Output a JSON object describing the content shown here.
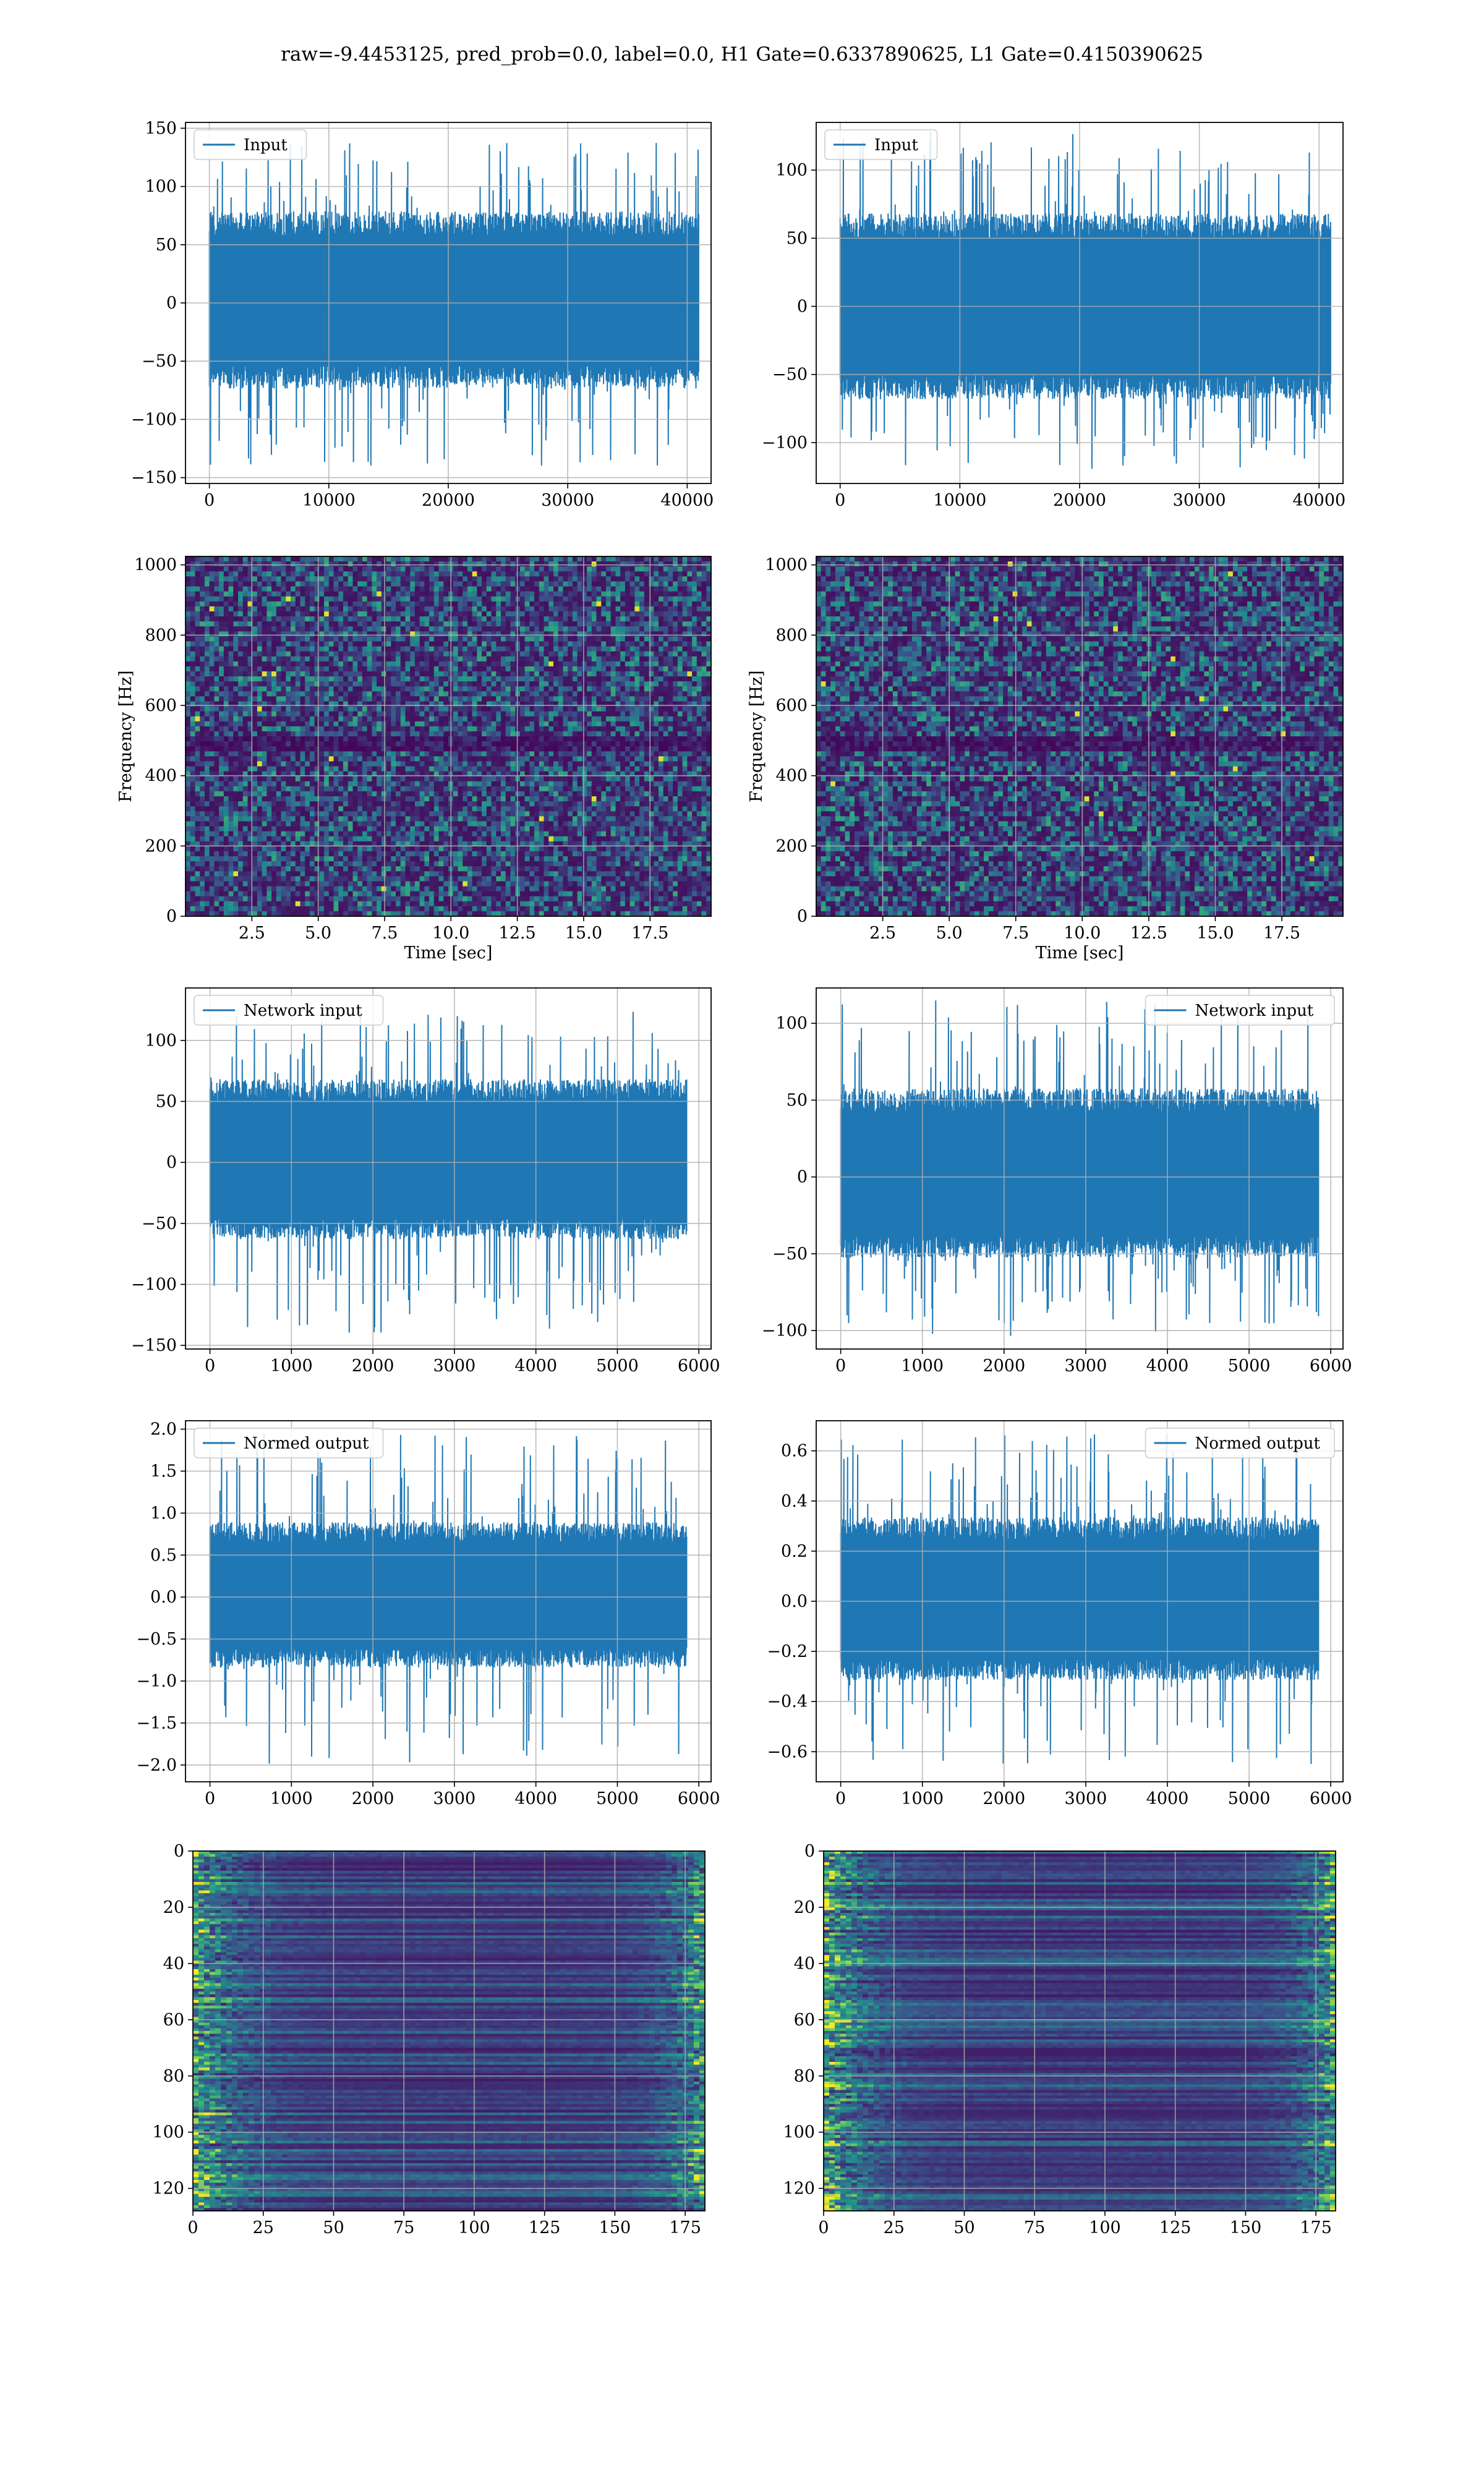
{
  "figure": {
    "title": "raw=-9.4453125, pred_prob=0.0, label=0.0, H1 Gate=0.6337890625, L1 Gate=0.4150390625",
    "colors": {
      "line": "#1f77b4",
      "grid": "#b0b0b0",
      "viridis_dark": "#440154",
      "viridis_mid": "#3b528b",
      "viridis_teal": "#21918c",
      "viridis_green": "#5ec962",
      "viridis_yellow": "#fde725"
    }
  },
  "chart_data": [
    {
      "id": "input-h1",
      "type": "line",
      "title": "",
      "xlabel": "",
      "ylabel": "",
      "xlim": [
        -2000,
        42000
      ],
      "ylim": [
        -155,
        155
      ],
      "xticks": [
        0,
        10000,
        20000,
        30000,
        40000
      ],
      "xtick_labels": [
        "0",
        "10000",
        "20000",
        "30000",
        "40000"
      ],
      "yticks": [
        -150,
        -100,
        -50,
        0,
        50,
        100,
        150
      ],
      "ytick_labels": [
        "−150",
        "−100",
        "−50",
        "0",
        "50",
        "100",
        "150"
      ],
      "grid": true,
      "legend": "top-left",
      "series": [
        {
          "name": "Input",
          "x_range": [
            0,
            40960
          ],
          "band": [
            -70,
            75
          ],
          "peak_max": 140,
          "peak_min": -140
        }
      ]
    },
    {
      "id": "input-l1",
      "type": "line",
      "title": "",
      "xlabel": "",
      "ylabel": "",
      "xlim": [
        -2000,
        42000
      ],
      "ylim": [
        -130,
        135
      ],
      "xticks": [
        0,
        10000,
        20000,
        30000,
        40000
      ],
      "xtick_labels": [
        "0",
        "10000",
        "20000",
        "30000",
        "40000"
      ],
      "yticks": [
        -100,
        -50,
        0,
        50,
        100
      ],
      "ytick_labels": [
        "−100",
        "−50",
        "0",
        "50",
        "100"
      ],
      "grid": true,
      "legend": "top-left",
      "series": [
        {
          "name": "Input",
          "x_range": [
            0,
            40960
          ],
          "band": [
            -65,
            65
          ],
          "peak_max": 130,
          "peak_min": -120
        }
      ]
    },
    {
      "id": "spectrogram-h1",
      "type": "heatmap",
      "title": "",
      "xlabel": "Time [sec]",
      "ylabel": "Frequency [Hz]",
      "xlim": [
        0,
        19.8
      ],
      "ylim": [
        0,
        1024
      ],
      "xticks": [
        2.5,
        5.0,
        7.5,
        10.0,
        12.5,
        15.0,
        17.5
      ],
      "xtick_labels": [
        "2.5",
        "5.0",
        "7.5",
        "10.0",
        "12.5",
        "15.0",
        "17.5"
      ],
      "yticks": [
        0,
        200,
        400,
        600,
        800,
        1000
      ],
      "ytick_labels": [
        "0",
        "200",
        "400",
        "600",
        "800",
        "1000"
      ],
      "grid": true,
      "colormap": "viridis"
    },
    {
      "id": "spectrogram-l1",
      "type": "heatmap",
      "title": "",
      "xlabel": "Time [sec]",
      "ylabel": "Frequency [Hz]",
      "xlim": [
        0,
        19.8
      ],
      "ylim": [
        0,
        1024
      ],
      "xticks": [
        2.5,
        5.0,
        7.5,
        10.0,
        12.5,
        15.0,
        17.5
      ],
      "xtick_labels": [
        "2.5",
        "5.0",
        "7.5",
        "10.0",
        "12.5",
        "15.0",
        "17.5"
      ],
      "yticks": [
        0,
        200,
        400,
        600,
        800,
        1000
      ],
      "ytick_labels": [
        "0",
        "200",
        "400",
        "600",
        "800",
        "1000"
      ],
      "grid": true,
      "colormap": "viridis"
    },
    {
      "id": "network-input-h1",
      "type": "line",
      "title": "",
      "xlabel": "",
      "ylabel": "",
      "xlim": [
        -300,
        6150
      ],
      "ylim": [
        -153,
        143
      ],
      "xticks": [
        0,
        1000,
        2000,
        3000,
        4000,
        5000,
        6000
      ],
      "xtick_labels": [
        "0",
        "1000",
        "2000",
        "3000",
        "4000",
        "5000",
        "6000"
      ],
      "yticks": [
        -150,
        -100,
        -50,
        0,
        50,
        100
      ],
      "ytick_labels": [
        "−150",
        "−100",
        "−50",
        "0",
        "50",
        "100"
      ],
      "grid": true,
      "legend": "top-left",
      "series": [
        {
          "name": "Network input",
          "x_range": [
            0,
            5850
          ],
          "band": [
            -60,
            65
          ],
          "peak_max": 125,
          "peak_min": -140
        }
      ]
    },
    {
      "id": "network-input-l1",
      "type": "line",
      "title": "",
      "xlabel": "",
      "ylabel": "",
      "xlim": [
        -300,
        6150
      ],
      "ylim": [
        -112,
        123
      ],
      "xticks": [
        0,
        1000,
        2000,
        3000,
        4000,
        5000,
        6000
      ],
      "xtick_labels": [
        "0",
        "1000",
        "2000",
        "3000",
        "4000",
        "5000",
        "6000"
      ],
      "yticks": [
        -100,
        -50,
        0,
        50,
        100
      ],
      "ytick_labels": [
        "−100",
        "−50",
        "0",
        "50",
        "100"
      ],
      "grid": true,
      "legend": "top-right",
      "series": [
        {
          "name": "Network input",
          "x_range": [
            0,
            5850
          ],
          "band": [
            -50,
            55
          ],
          "peak_max": 115,
          "peak_min": -105
        }
      ]
    },
    {
      "id": "normed-output-h1",
      "type": "line",
      "title": "",
      "xlabel": "",
      "ylabel": "",
      "xlim": [
        -300,
        6150
      ],
      "ylim": [
        -2.2,
        2.1
      ],
      "xticks": [
        0,
        1000,
        2000,
        3000,
        4000,
        5000,
        6000
      ],
      "xtick_labels": [
        "0",
        "1000",
        "2000",
        "3000",
        "4000",
        "5000",
        "6000"
      ],
      "yticks": [
        -2.0,
        -1.5,
        -1.0,
        -0.5,
        0.0,
        0.5,
        1.0,
        1.5,
        2.0
      ],
      "ytick_labels": [
        "−2.0",
        "−1.5",
        "−1.0",
        "−0.5",
        "0.0",
        "0.5",
        "1.0",
        "1.5",
        "2.0"
      ],
      "grid": true,
      "legend": "top-left",
      "series": [
        {
          "name": "Normed output",
          "x_range": [
            0,
            5850
          ],
          "band": [
            -0.8,
            0.85
          ],
          "peak_max": 1.95,
          "peak_min": -2.0
        }
      ]
    },
    {
      "id": "normed-output-l1",
      "type": "line",
      "title": "",
      "xlabel": "",
      "ylabel": "",
      "xlim": [
        -300,
        6150
      ],
      "ylim": [
        -0.72,
        0.72
      ],
      "xticks": [
        0,
        1000,
        2000,
        3000,
        4000,
        5000,
        6000
      ],
      "xtick_labels": [
        "0",
        "1000",
        "2000",
        "3000",
        "4000",
        "5000",
        "6000"
      ],
      "yticks": [
        -0.6,
        -0.4,
        -0.2,
        0.0,
        0.2,
        0.4,
        0.6
      ],
      "ytick_labels": [
        "−0.6",
        "−0.4",
        "−0.2",
        "0.0",
        "0.2",
        "0.4",
        "0.6"
      ],
      "grid": true,
      "legend": "top-right",
      "series": [
        {
          "name": "Normed output",
          "x_range": [
            0,
            5850
          ],
          "band": [
            -0.3,
            0.32
          ],
          "peak_max": 0.68,
          "peak_min": -0.65
        }
      ]
    },
    {
      "id": "feature-map-h1",
      "type": "heatmap",
      "title": "",
      "xlabel": "",
      "ylabel": "",
      "xlim": [
        0,
        182
      ],
      "ylim": [
        128,
        0
      ],
      "xticks": [
        0,
        25,
        50,
        75,
        100,
        125,
        150,
        175
      ],
      "xtick_labels": [
        "0",
        "25",
        "50",
        "75",
        "100",
        "125",
        "150",
        "175"
      ],
      "yticks": [
        0,
        20,
        40,
        60,
        80,
        100,
        120
      ],
      "ytick_labels": [
        "0",
        "20",
        "40",
        "60",
        "80",
        "100",
        "120"
      ],
      "grid": true,
      "colormap": "viridis"
    },
    {
      "id": "feature-map-l1",
      "type": "heatmap",
      "title": "",
      "xlabel": "",
      "ylabel": "",
      "xlim": [
        0,
        182
      ],
      "ylim": [
        128,
        0
      ],
      "xticks": [
        0,
        25,
        50,
        75,
        100,
        125,
        150,
        175
      ],
      "xtick_labels": [
        "0",
        "25",
        "50",
        "75",
        "100",
        "125",
        "150",
        "175"
      ],
      "yticks": [
        0,
        20,
        40,
        60,
        80,
        100,
        120
      ],
      "ytick_labels": [
        "0",
        "20",
        "40",
        "60",
        "80",
        "100",
        "120"
      ],
      "grid": true,
      "colormap": "viridis"
    }
  ]
}
